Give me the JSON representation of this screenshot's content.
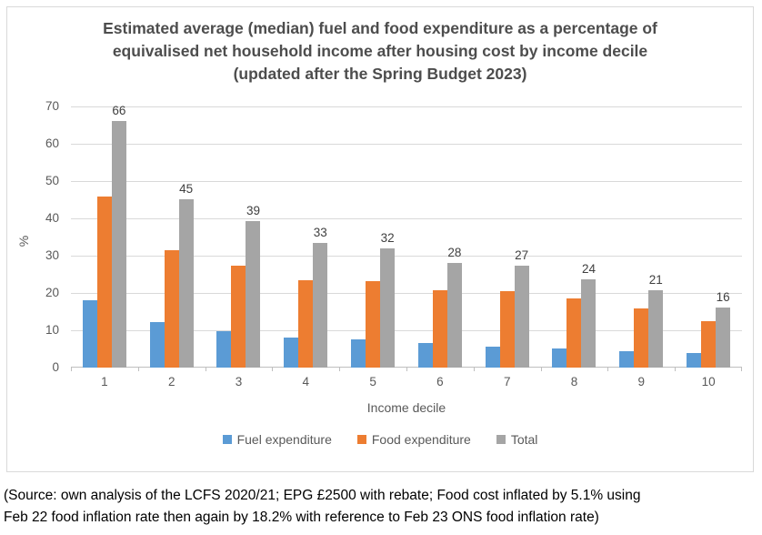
{
  "chart_data": {
    "type": "bar",
    "title": "Estimated average (median) fuel and food expenditure as a percentage of\nequivalised net household income after housing cost by income decile\n(updated after the Spring Budget 2023)",
    "categories": [
      "1",
      "2",
      "3",
      "4",
      "5",
      "6",
      "7",
      "8",
      "9",
      "10"
    ],
    "series": [
      {
        "name": "Fuel expenditure",
        "color": "#5B9BD5",
        "values": [
          18,
          12.1,
          9.8,
          8,
          7.5,
          6.7,
          5.6,
          5.1,
          4.3,
          3.9
        ]
      },
      {
        "name": "Food expenditure",
        "color": "#ED7D31",
        "values": [
          45.8,
          31.4,
          27.3,
          23.4,
          23.1,
          20.8,
          20.4,
          18.5,
          15.9,
          12.4
        ]
      },
      {
        "name": "Total",
        "color": "#A5A5A5",
        "values": [
          66,
          45.2,
          39.2,
          33.4,
          32,
          28,
          27.2,
          23.7,
          20.7,
          16
        ]
      }
    ],
    "bar_labels": {
      "series": "Total",
      "values": [
        "66",
        "45",
        "39",
        "33",
        "32",
        "28",
        "27",
        "24",
        "21",
        "16"
      ]
    },
    "xlabel": "Income decile",
    "ylabel": "%",
    "ylim": [
      0,
      70
    ],
    "yticks": [
      0,
      10,
      20,
      30,
      40,
      50,
      60,
      70
    ],
    "grid": true,
    "legend_position": "bottom"
  },
  "source_note": "(Source: own analysis of the LCFS 2020/21; EPG £2500 with rebate; Food cost inflated by 5.1% using\nFeb 22 food inflation rate then again by 18.2% with reference to Feb 23 ONS food inflation rate)",
  "colors": {
    "fuel": "#5B9BD5",
    "food": "#ED7D31",
    "total": "#A5A5A5",
    "gridline": "#D9D9D9",
    "axis_line": "#BFBFBF",
    "axis_text": "#595959",
    "title_text": "#4d4d4d",
    "data_label_text": "#404040",
    "frame_border": "#D9D9D9",
    "background": "#FFFFFF"
  }
}
